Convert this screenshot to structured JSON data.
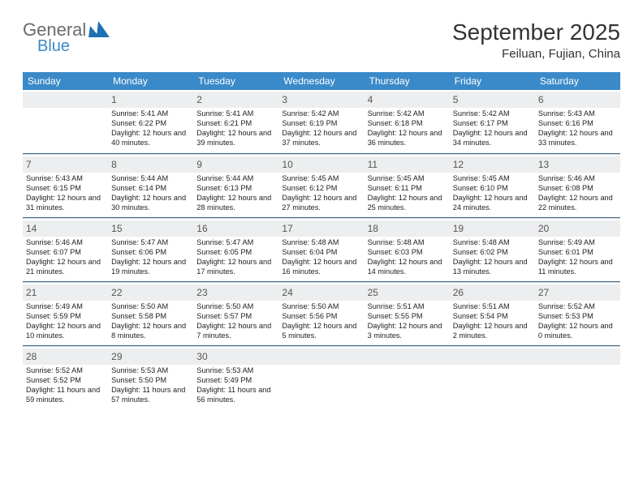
{
  "logo": {
    "word1": "General",
    "word2": "Blue"
  },
  "title": "September 2025",
  "location": "Feiluan, Fujian, China",
  "colors": {
    "header_bg": "#3a8ac9",
    "header_text": "#ffffff",
    "week_divider": "#3a6a8f",
    "daynum_bg": "#eceeef",
    "text": "#222222",
    "logo_gray": "#6b6b6b",
    "logo_blue": "#1f6fb2"
  },
  "day_headers": [
    "Sunday",
    "Monday",
    "Tuesday",
    "Wednesday",
    "Thursday",
    "Friday",
    "Saturday"
  ],
  "weeks": [
    [
      {
        "n": "",
        "sr": "",
        "ss": "",
        "dl": ""
      },
      {
        "n": "1",
        "sr": "5:41 AM",
        "ss": "6:22 PM",
        "dl": "12 hours and 40 minutes."
      },
      {
        "n": "2",
        "sr": "5:41 AM",
        "ss": "6:21 PM",
        "dl": "12 hours and 39 minutes."
      },
      {
        "n": "3",
        "sr": "5:42 AM",
        "ss": "6:19 PM",
        "dl": "12 hours and 37 minutes."
      },
      {
        "n": "4",
        "sr": "5:42 AM",
        "ss": "6:18 PM",
        "dl": "12 hours and 36 minutes."
      },
      {
        "n": "5",
        "sr": "5:42 AM",
        "ss": "6:17 PM",
        "dl": "12 hours and 34 minutes."
      },
      {
        "n": "6",
        "sr": "5:43 AM",
        "ss": "6:16 PM",
        "dl": "12 hours and 33 minutes."
      }
    ],
    [
      {
        "n": "7",
        "sr": "5:43 AM",
        "ss": "6:15 PM",
        "dl": "12 hours and 31 minutes."
      },
      {
        "n": "8",
        "sr": "5:44 AM",
        "ss": "6:14 PM",
        "dl": "12 hours and 30 minutes."
      },
      {
        "n": "9",
        "sr": "5:44 AM",
        "ss": "6:13 PM",
        "dl": "12 hours and 28 minutes."
      },
      {
        "n": "10",
        "sr": "5:45 AM",
        "ss": "6:12 PM",
        "dl": "12 hours and 27 minutes."
      },
      {
        "n": "11",
        "sr": "5:45 AM",
        "ss": "6:11 PM",
        "dl": "12 hours and 25 minutes."
      },
      {
        "n": "12",
        "sr": "5:45 AM",
        "ss": "6:10 PM",
        "dl": "12 hours and 24 minutes."
      },
      {
        "n": "13",
        "sr": "5:46 AM",
        "ss": "6:08 PM",
        "dl": "12 hours and 22 minutes."
      }
    ],
    [
      {
        "n": "14",
        "sr": "5:46 AM",
        "ss": "6:07 PM",
        "dl": "12 hours and 21 minutes."
      },
      {
        "n": "15",
        "sr": "5:47 AM",
        "ss": "6:06 PM",
        "dl": "12 hours and 19 minutes."
      },
      {
        "n": "16",
        "sr": "5:47 AM",
        "ss": "6:05 PM",
        "dl": "12 hours and 17 minutes."
      },
      {
        "n": "17",
        "sr": "5:48 AM",
        "ss": "6:04 PM",
        "dl": "12 hours and 16 minutes."
      },
      {
        "n": "18",
        "sr": "5:48 AM",
        "ss": "6:03 PM",
        "dl": "12 hours and 14 minutes."
      },
      {
        "n": "19",
        "sr": "5:48 AM",
        "ss": "6:02 PM",
        "dl": "12 hours and 13 minutes."
      },
      {
        "n": "20",
        "sr": "5:49 AM",
        "ss": "6:01 PM",
        "dl": "12 hours and 11 minutes."
      }
    ],
    [
      {
        "n": "21",
        "sr": "5:49 AM",
        "ss": "5:59 PM",
        "dl": "12 hours and 10 minutes."
      },
      {
        "n": "22",
        "sr": "5:50 AM",
        "ss": "5:58 PM",
        "dl": "12 hours and 8 minutes."
      },
      {
        "n": "23",
        "sr": "5:50 AM",
        "ss": "5:57 PM",
        "dl": "12 hours and 7 minutes."
      },
      {
        "n": "24",
        "sr": "5:50 AM",
        "ss": "5:56 PM",
        "dl": "12 hours and 5 minutes."
      },
      {
        "n": "25",
        "sr": "5:51 AM",
        "ss": "5:55 PM",
        "dl": "12 hours and 3 minutes."
      },
      {
        "n": "26",
        "sr": "5:51 AM",
        "ss": "5:54 PM",
        "dl": "12 hours and 2 minutes."
      },
      {
        "n": "27",
        "sr": "5:52 AM",
        "ss": "5:53 PM",
        "dl": "12 hours and 0 minutes."
      }
    ],
    [
      {
        "n": "28",
        "sr": "5:52 AM",
        "ss": "5:52 PM",
        "dl": "11 hours and 59 minutes."
      },
      {
        "n": "29",
        "sr": "5:53 AM",
        "ss": "5:50 PM",
        "dl": "11 hours and 57 minutes."
      },
      {
        "n": "30",
        "sr": "5:53 AM",
        "ss": "5:49 PM",
        "dl": "11 hours and 56 minutes."
      },
      {
        "n": "",
        "sr": "",
        "ss": "",
        "dl": ""
      },
      {
        "n": "",
        "sr": "",
        "ss": "",
        "dl": ""
      },
      {
        "n": "",
        "sr": "",
        "ss": "",
        "dl": ""
      },
      {
        "n": "",
        "sr": "",
        "ss": "",
        "dl": ""
      }
    ]
  ],
  "labels": {
    "sunrise": "Sunrise:",
    "sunset": "Sunset:",
    "daylight": "Daylight:"
  }
}
